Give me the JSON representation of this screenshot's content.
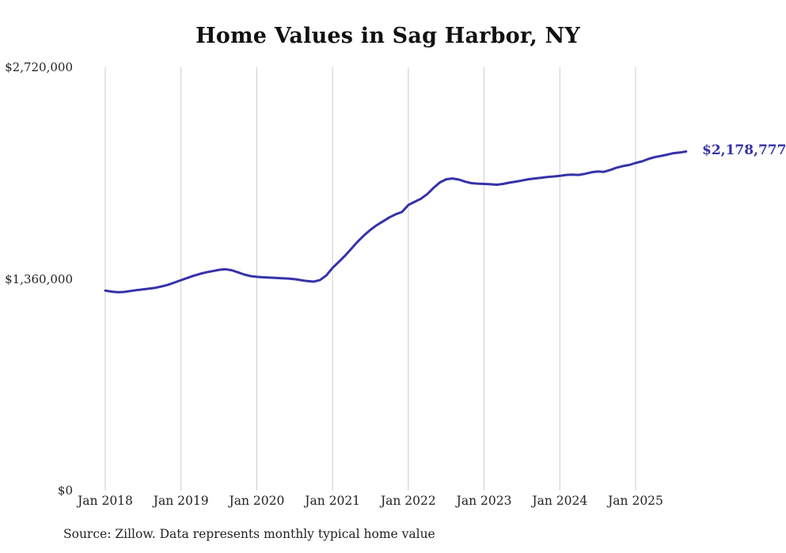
{
  "title": "Home Values in Sag Harbor, NY",
  "source_note": "Source: Zillow. Data represents monthly typical home value",
  "end_label": "$2,178,777",
  "colors": {
    "line": "#3632a8",
    "grid": "#cccccc",
    "title_text": "#111111",
    "axis_text": "#222222"
  },
  "chart_data": {
    "type": "line",
    "title": "Home Values in Sag Harbor, NY",
    "frequency": "monthly",
    "x_start_month": "2018-01",
    "x_end_month": "2025-09",
    "x_ticks": [
      "Jan 2018",
      "Jan 2019",
      "Jan 2020",
      "Jan 2021",
      "Jan 2022",
      "Jan 2023",
      "Jan 2024",
      "Jan 2025"
    ],
    "y_ticks": [
      {
        "label": "$0",
        "value": 0
      },
      {
        "label": "$1,360,000",
        "value": 1360000
      },
      {
        "label": "$2,720,000",
        "value": 2720000
      }
    ],
    "ylim": [
      0,
      2720000
    ],
    "grid": "vertical-only",
    "legend": "none",
    "end_value": 2178777,
    "series": [
      {
        "name": "Typical home value",
        "values": [
          1285000,
          1278000,
          1274000,
          1276000,
          1282000,
          1288000,
          1293000,
          1298000,
          1303000,
          1312000,
          1323000,
          1337000,
          1352000,
          1366000,
          1380000,
          1392000,
          1402000,
          1410000,
          1418000,
          1422000,
          1416000,
          1402000,
          1388000,
          1378000,
          1373000,
          1370000,
          1368000,
          1366000,
          1364000,
          1362000,
          1358000,
          1352000,
          1346000,
          1342000,
          1352000,
          1382000,
          1430000,
          1470000,
          1510000,
          1555000,
          1600000,
          1640000,
          1675000,
          1705000,
          1730000,
          1755000,
          1775000,
          1790000,
          1835000,
          1855000,
          1875000,
          1905000,
          1945000,
          1980000,
          2000000,
          2005000,
          1998000,
          1985000,
          1975000,
          1972000,
          1970000,
          1968000,
          1965000,
          1970000,
          1978000,
          1985000,
          1992000,
          2000000,
          2005000,
          2010000,
          2015000,
          2018000,
          2022000,
          2028000,
          2030000,
          2028000,
          2035000,
          2045000,
          2050000,
          2048000,
          2060000,
          2075000,
          2085000,
          2092000,
          2105000,
          2115000,
          2130000,
          2142000,
          2150000,
          2158000,
          2168000,
          2172000,
          2178777
        ]
      }
    ]
  }
}
